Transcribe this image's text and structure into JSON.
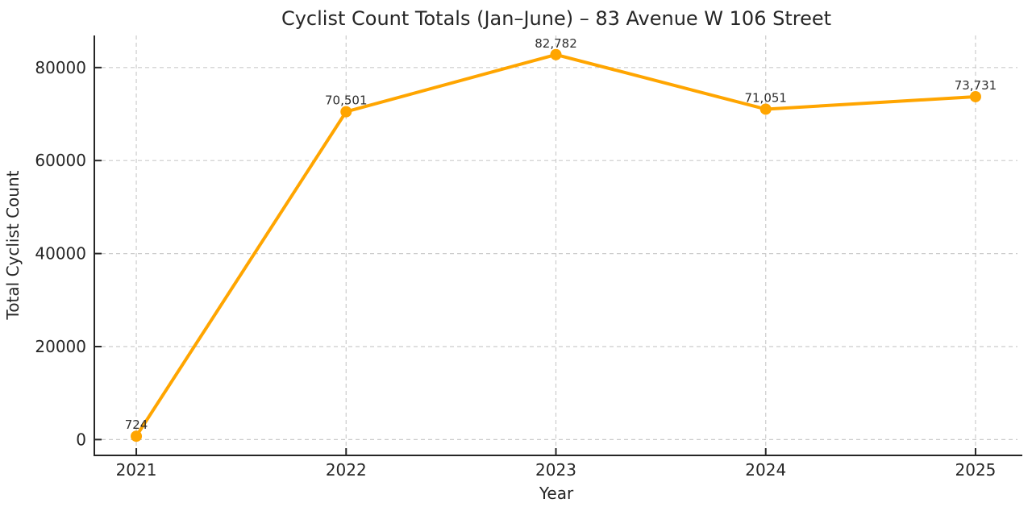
{
  "chart_data": {
    "type": "line",
    "title": "Cyclist Count Totals (Jan–June) – 83 Avenue W 106 Street",
    "xlabel": "Year",
    "ylabel": "Total Cyclist Count",
    "x": [
      2021,
      2022,
      2023,
      2024,
      2025
    ],
    "values": [
      724,
      70501,
      82782,
      71051,
      73731
    ],
    "point_labels": [
      "724",
      "70,501",
      "82,782",
      "71,051",
      "73,731"
    ],
    "xticks": [
      2021,
      2022,
      2023,
      2024,
      2025
    ],
    "xtick_labels": [
      "2021",
      "2022",
      "2023",
      "2024",
      "2025"
    ],
    "yticks": [
      0,
      20000,
      40000,
      60000,
      80000
    ],
    "ytick_labels": [
      "0",
      "20000",
      "40000",
      "60000",
      "80000"
    ],
    "xlim": [
      2020.8,
      2025.2
    ],
    "ylim": [
      -3400,
      86900
    ],
    "grid": true,
    "legend": "none",
    "line_color": "#FFA500",
    "marker": "circle",
    "grid_color": "#cccccc",
    "axis_color": "#262626",
    "text_color": "#262626",
    "background": "#ffffff"
  }
}
